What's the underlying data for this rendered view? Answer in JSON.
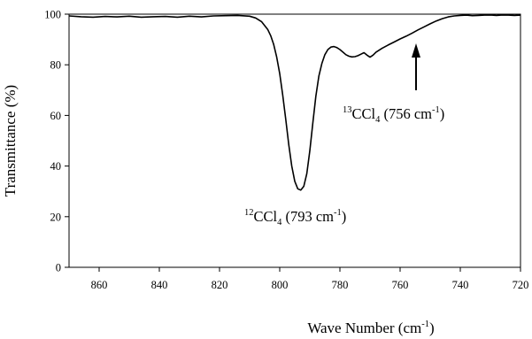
{
  "chart_data": {
    "type": "line",
    "title": "",
    "xlabel": "Wave Number (cm",
    "xlabel_sup": "-1",
    "xlabel_tail": ")",
    "ylabel": "Transmittance (%)",
    "xlim": [
      870,
      720
    ],
    "ylim": [
      0,
      100
    ],
    "x_reversed": true,
    "grid": false,
    "x_ticks": [
      860,
      840,
      820,
      800,
      780,
      760,
      740,
      720
    ],
    "y_ticks": [
      0,
      20,
      40,
      60,
      80,
      100
    ],
    "series": [
      {
        "color": "#000000",
        "x": [
          870,
          866,
          862,
          858,
          854,
          850,
          846,
          842,
          838,
          834,
          830,
          826,
          822,
          818,
          814,
          810,
          808,
          806,
          804,
          803,
          802,
          801,
          800,
          799,
          798,
          797,
          796,
          795,
          794,
          793,
          792,
          791,
          790,
          789,
          788,
          787,
          786,
          785,
          784,
          783,
          782,
          781,
          780,
          779,
          778,
          777,
          776,
          775,
          774,
          773,
          772,
          771,
          770,
          769,
          768,
          766,
          764,
          762,
          760,
          758,
          756,
          754,
          752,
          750,
          748,
          746,
          744,
          742,
          740,
          738,
          736,
          734,
          732,
          730,
          728,
          726,
          724,
          722,
          720
        ],
        "y": [
          99.3,
          99.0,
          98.8,
          99.1,
          98.9,
          99.2,
          98.8,
          99.0,
          99.1,
          98.8,
          99.2,
          98.9,
          99.3,
          99.4,
          99.5,
          99.2,
          98.5,
          97.0,
          94.0,
          91.5,
          88.0,
          83.0,
          76.5,
          68.0,
          58.5,
          48.5,
          40.0,
          34.0,
          31.0,
          30.5,
          32.0,
          37.0,
          46.0,
          57.0,
          67.5,
          75.5,
          80.5,
          84.0,
          86.0,
          87.0,
          87.2,
          86.8,
          86.0,
          85.0,
          84.0,
          83.4,
          83.1,
          83.2,
          83.6,
          84.2,
          84.8,
          83.8,
          83.0,
          83.8,
          85.0,
          86.5,
          87.8,
          89.0,
          90.2,
          91.3,
          92.5,
          93.8,
          95.0,
          96.2,
          97.3,
          98.2,
          98.9,
          99.3,
          99.5,
          99.6,
          99.4,
          99.5,
          99.6,
          99.7,
          99.5,
          99.7,
          99.6,
          99.5,
          99.6
        ]
      }
    ],
    "annotations": [
      {
        "species_sup": "12",
        "species": "CCl",
        "species_sub": "4",
        "text": " (793 cm",
        "text_sup": "-1",
        "tail": ")"
      },
      {
        "species_sup": "13",
        "species": "CCl",
        "species_sub": "4",
        "text": " (756 cm",
        "text_sup": "-1",
        "tail": ")",
        "arrow": true
      }
    ]
  }
}
